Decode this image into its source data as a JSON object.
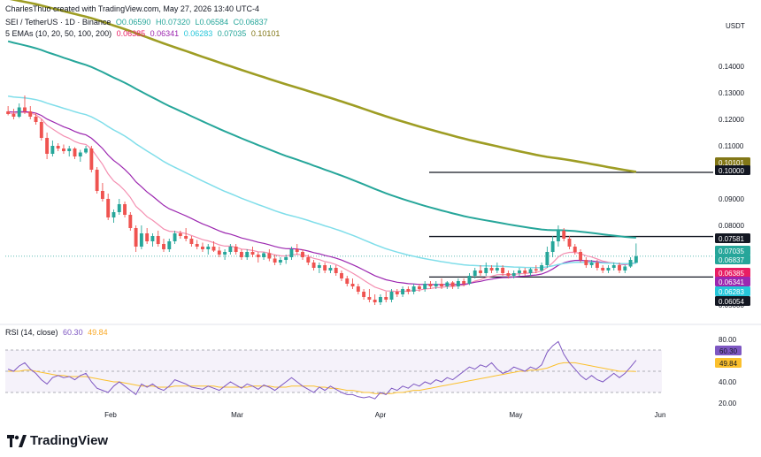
{
  "header": {
    "author_line": "CharlesThuo created with TradingView.com, May 27, 2026 13:40 UTC-4",
    "symbol_line": "SEI / TetherUS · 1D · Binance",
    "ohlc": [
      "O0.06590",
      "H0.07320",
      "L0.06584",
      "C0.06837"
    ],
    "ema_title": "5 EMAs (10, 20, 50, 100, 200)",
    "ema_values": [
      {
        "text": "0.06385",
        "color": "#e91e63"
      },
      {
        "text": "0.06341",
        "color": "#9c27b0"
      },
      {
        "text": "0.06283",
        "color": "#26c6da"
      },
      {
        "text": "0.07035",
        "color": "#26a69a"
      },
      {
        "text": "0.10101",
        "color": "#827717"
      }
    ],
    "currency": "USDT"
  },
  "rsi_header": {
    "title": "RSI (14, close)",
    "value": "60.30",
    "ma": "49.84"
  },
  "brand": "TradingView",
  "colors": {
    "up": "#26a69a",
    "down": "#ef5350",
    "ema10": "#f48fb1",
    "ema20": "#9c27b0",
    "ema50": "#80deea",
    "ema100": "#26a69a",
    "ema200": "#9e9d24",
    "rsi": "#7e57c2",
    "rsi_ma": "#fbc02d"
  },
  "chart_data": {
    "type": "candlestick",
    "price_axis": {
      "min": 0.045,
      "max": 0.15,
      "ticks": [
        "0.14000",
        "0.13000",
        "0.12000",
        "0.11000",
        "0.10000",
        "0.09000",
        "0.08000",
        "0.07000",
        "0.06000",
        "0.05000"
      ]
    },
    "time_axis": {
      "labels": [
        "Feb",
        "Mar",
        "Apr",
        "May",
        "Jun"
      ]
    },
    "key_levels": [
      0.1,
      0.07581,
      0.06054
    ],
    "price_labels": [
      {
        "text": "0.10101",
        "color": "#827717"
      },
      {
        "text": "0.10000",
        "color": "#131722"
      },
      {
        "text": "0.07581",
        "color": "#131722"
      },
      {
        "text": "0.07035",
        "color": "#26a69a"
      },
      {
        "text": "0.06837",
        "color": "#26a69a"
      },
      {
        "text": "0.06385",
        "color": "#e91e63"
      },
      {
        "text": "0.06341",
        "color": "#9c27b0"
      },
      {
        "text": "0.06283",
        "color": "#26c6da"
      },
      {
        "text": "0.06054",
        "color": "#131722"
      }
    ],
    "candles": [
      [
        0.123,
        0.125,
        0.1215,
        0.122
      ],
      [
        0.122,
        0.124,
        0.12,
        0.121
      ],
      [
        0.121,
        0.126,
        0.1205,
        0.1245
      ],
      [
        0.1245,
        0.129,
        0.122,
        0.123
      ],
      [
        0.123,
        0.125,
        0.12,
        0.121
      ],
      [
        0.121,
        0.1225,
        0.118,
        0.119
      ],
      [
        0.119,
        0.12,
        0.112,
        0.113
      ],
      [
        0.113,
        0.115,
        0.105,
        0.107
      ],
      [
        0.107,
        0.112,
        0.106,
        0.11
      ],
      [
        0.11,
        0.111,
        0.108,
        0.109
      ],
      [
        0.109,
        0.1105,
        0.107,
        0.108
      ],
      [
        0.108,
        0.11,
        0.106,
        0.109
      ],
      [
        0.109,
        0.1095,
        0.105,
        0.106
      ],
      [
        0.106,
        0.1085,
        0.104,
        0.1075
      ],
      [
        0.1075,
        0.11,
        0.107,
        0.109
      ],
      [
        0.109,
        0.11,
        0.1,
        0.101
      ],
      [
        0.101,
        0.102,
        0.092,
        0.093
      ],
      [
        0.093,
        0.096,
        0.089,
        0.09
      ],
      [
        0.09,
        0.092,
        0.082,
        0.083
      ],
      [
        0.083,
        0.086,
        0.081,
        0.085
      ],
      [
        0.085,
        0.09,
        0.084,
        0.088
      ],
      [
        0.088,
        0.089,
        0.083,
        0.084
      ],
      [
        0.084,
        0.085,
        0.078,
        0.079
      ],
      [
        0.079,
        0.08,
        0.07,
        0.072
      ],
      [
        0.072,
        0.08,
        0.071,
        0.077
      ],
      [
        0.077,
        0.079,
        0.073,
        0.074
      ],
      [
        0.074,
        0.077,
        0.072,
        0.076
      ],
      [
        0.076,
        0.078,
        0.072,
        0.073
      ],
      [
        0.073,
        0.075,
        0.07,
        0.071
      ],
      [
        0.071,
        0.075,
        0.07,
        0.074
      ],
      [
        0.074,
        0.078,
        0.073,
        0.077
      ],
      [
        0.077,
        0.078,
        0.075,
        0.076
      ],
      [
        0.076,
        0.079,
        0.074,
        0.075
      ],
      [
        0.075,
        0.076,
        0.072,
        0.073
      ],
      [
        0.073,
        0.0745,
        0.071,
        0.072
      ],
      [
        0.072,
        0.0735,
        0.07,
        0.071
      ],
      [
        0.071,
        0.073,
        0.069,
        0.072
      ],
      [
        0.072,
        0.074,
        0.07,
        0.0705
      ],
      [
        0.0705,
        0.072,
        0.068,
        0.069
      ],
      [
        0.069,
        0.071,
        0.067,
        0.07
      ],
      [
        0.07,
        0.073,
        0.069,
        0.072
      ],
      [
        0.072,
        0.073,
        0.069,
        0.07
      ],
      [
        0.07,
        0.071,
        0.067,
        0.068
      ],
      [
        0.068,
        0.071,
        0.067,
        0.07
      ],
      [
        0.07,
        0.072,
        0.068,
        0.069
      ],
      [
        0.069,
        0.07,
        0.066,
        0.068
      ],
      [
        0.068,
        0.07,
        0.067,
        0.0695
      ],
      [
        0.0695,
        0.071,
        0.0665,
        0.0675
      ],
      [
        0.0675,
        0.069,
        0.065,
        0.066
      ],
      [
        0.066,
        0.068,
        0.065,
        0.067
      ],
      [
        0.067,
        0.069,
        0.0655,
        0.068
      ],
      [
        0.068,
        0.072,
        0.067,
        0.071
      ],
      [
        0.071,
        0.073,
        0.069,
        0.07
      ],
      [
        0.07,
        0.071,
        0.067,
        0.068
      ],
      [
        0.068,
        0.069,
        0.065,
        0.066
      ],
      [
        0.066,
        0.067,
        0.063,
        0.064
      ],
      [
        0.064,
        0.066,
        0.062,
        0.065
      ],
      [
        0.065,
        0.066,
        0.062,
        0.063
      ],
      [
        0.063,
        0.065,
        0.062,
        0.064
      ],
      [
        0.064,
        0.065,
        0.061,
        0.062
      ],
      [
        0.062,
        0.063,
        0.059,
        0.06
      ],
      [
        0.06,
        0.061,
        0.057,
        0.058
      ],
      [
        0.058,
        0.06,
        0.056,
        0.057
      ],
      [
        0.057,
        0.058,
        0.054,
        0.055
      ],
      [
        0.055,
        0.056,
        0.052,
        0.053
      ],
      [
        0.053,
        0.056,
        0.051,
        0.052
      ],
      [
        0.052,
        0.054,
        0.05,
        0.051
      ],
      [
        0.051,
        0.054,
        0.05,
        0.053
      ],
      [
        0.053,
        0.055,
        0.051,
        0.052
      ],
      [
        0.052,
        0.056,
        0.051,
        0.055
      ],
      [
        0.055,
        0.056,
        0.053,
        0.054
      ],
      [
        0.054,
        0.057,
        0.053,
        0.056
      ],
      [
        0.056,
        0.057,
        0.054,
        0.055
      ],
      [
        0.055,
        0.058,
        0.054,
        0.057
      ],
      [
        0.057,
        0.058,
        0.055,
        0.056
      ],
      [
        0.056,
        0.059,
        0.055,
        0.058
      ],
      [
        0.058,
        0.059,
        0.056,
        0.057
      ],
      [
        0.057,
        0.059,
        0.056,
        0.058
      ],
      [
        0.058,
        0.06,
        0.056,
        0.057
      ],
      [
        0.057,
        0.059,
        0.056,
        0.0585
      ],
      [
        0.0585,
        0.059,
        0.056,
        0.057
      ],
      [
        0.057,
        0.06,
        0.056,
        0.059
      ],
      [
        0.059,
        0.06,
        0.057,
        0.058
      ],
      [
        0.058,
        0.062,
        0.0575,
        0.061
      ],
      [
        0.061,
        0.064,
        0.06,
        0.063
      ],
      [
        0.063,
        0.065,
        0.061,
        0.062
      ],
      [
        0.062,
        0.066,
        0.061,
        0.064
      ],
      [
        0.064,
        0.065,
        0.062,
        0.063
      ],
      [
        0.063,
        0.066,
        0.062,
        0.064
      ],
      [
        0.064,
        0.065,
        0.061,
        0.062
      ],
      [
        0.062,
        0.063,
        0.06,
        0.061
      ],
      [
        0.061,
        0.063,
        0.06,
        0.062
      ],
      [
        0.062,
        0.064,
        0.061,
        0.063
      ],
      [
        0.063,
        0.064,
        0.061,
        0.062
      ],
      [
        0.062,
        0.064,
        0.061,
        0.0635
      ],
      [
        0.0635,
        0.065,
        0.062,
        0.063
      ],
      [
        0.063,
        0.066,
        0.0625,
        0.065
      ],
      [
        0.065,
        0.072,
        0.064,
        0.07
      ],
      [
        0.07,
        0.076,
        0.068,
        0.074
      ],
      [
        0.074,
        0.08,
        0.072,
        0.078
      ],
      [
        0.078,
        0.079,
        0.074,
        0.075
      ],
      [
        0.075,
        0.076,
        0.071,
        0.072
      ],
      [
        0.072,
        0.073,
        0.069,
        0.07
      ],
      [
        0.07,
        0.071,
        0.066,
        0.067
      ],
      [
        0.067,
        0.068,
        0.064,
        0.065
      ],
      [
        0.065,
        0.067,
        0.064,
        0.066
      ],
      [
        0.066,
        0.067,
        0.063,
        0.064
      ],
      [
        0.064,
        0.065,
        0.062,
        0.063
      ],
      [
        0.063,
        0.065,
        0.062,
        0.064
      ],
      [
        0.064,
        0.066,
        0.063,
        0.065
      ],
      [
        0.065,
        0.066,
        0.062,
        0.063
      ],
      [
        0.063,
        0.065,
        0.062,
        0.0645
      ],
      [
        0.0645,
        0.068,
        0.064,
        0.067
      ],
      [
        0.0659,
        0.0732,
        0.0658,
        0.0684
      ]
    ],
    "rsi": {
      "axis": {
        "min": 15,
        "max": 85,
        "ticks": [
          "80.00",
          "60.00",
          "40.00",
          "20.00"
        ]
      },
      "upper": 70,
      "middle": 50,
      "lower": 30,
      "values": [
        52,
        50,
        55,
        58,
        52,
        48,
        42,
        38,
        44,
        46,
        44,
        45,
        42,
        46,
        48,
        40,
        34,
        32,
        30,
        36,
        40,
        36,
        32,
        28,
        38,
        35,
        38,
        34,
        32,
        36,
        42,
        40,
        38,
        35,
        34,
        33,
        36,
        34,
        32,
        36,
        40,
        37,
        34,
        38,
        36,
        33,
        37,
        35,
        32,
        36,
        40,
        44,
        40,
        36,
        33,
        30,
        35,
        32,
        36,
        33,
        30,
        28,
        28,
        26,
        25,
        26,
        24,
        30,
        28,
        34,
        32,
        36,
        34,
        38,
        36,
        40,
        38,
        42,
        40,
        44,
        42,
        46,
        50,
        54,
        52,
        56,
        54,
        58,
        52,
        48,
        50,
        54,
        52,
        50,
        54,
        52,
        56,
        68,
        74,
        78,
        66,
        58,
        52,
        46,
        42,
        46,
        42,
        40,
        44,
        48,
        44,
        48,
        54,
        60.3
      ],
      "ma_values": [
        50,
        50,
        50,
        51,
        51,
        50,
        49,
        48,
        47,
        46,
        46,
        45,
        45,
        45,
        45,
        44,
        43,
        42,
        41,
        40,
        40,
        39,
        38,
        37,
        36,
        36,
        36,
        35,
        35,
        35,
        36,
        36,
        36,
        36,
        36,
        36,
        36,
        36,
        35,
        35,
        35,
        35,
        35,
        35,
        36,
        36,
        36,
        36,
        35,
        35,
        35,
        36,
        36,
        36,
        36,
        36,
        35,
        35,
        34,
        34,
        33,
        32,
        32,
        31,
        30,
        30,
        29,
        29,
        29,
        29,
        30,
        30,
        31,
        32,
        32,
        33,
        34,
        35,
        36,
        37,
        38,
        39,
        40,
        41,
        42,
        43,
        44,
        45,
        46,
        47,
        48,
        49,
        50,
        50,
        51,
        51,
        52,
        53,
        55,
        57,
        58,
        58,
        58,
        57,
        56,
        55,
        54,
        53,
        52,
        51,
        50,
        50,
        50,
        49.84
      ]
    }
  }
}
